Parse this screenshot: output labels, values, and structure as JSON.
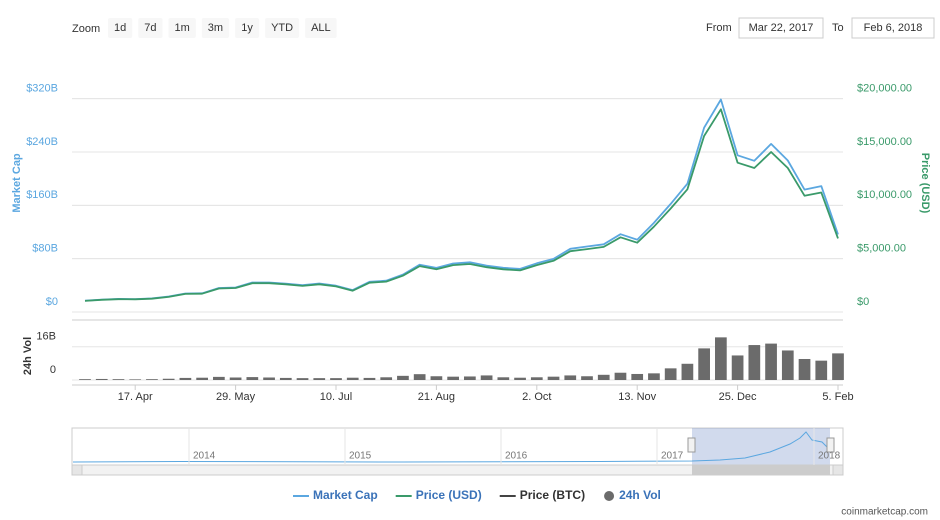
{
  "toolbar": {
    "zoom_label": "Zoom",
    "buttons": [
      "1d",
      "7d",
      "1m",
      "3m",
      "1y",
      "YTD",
      "ALL"
    ],
    "from_label": "From",
    "from": "Mar 22, 2017",
    "to_label": "To",
    "to": "Feb 6, 2018"
  },
  "chart_data": {
    "type": "line",
    "y_label": "Market Cap",
    "y2_label": "Price (USD)",
    "vol_label": "24h Vol",
    "categories": [
      null,
      null,
      null,
      "17. Apr",
      null,
      null,
      null,
      null,
      null,
      "29. May",
      null,
      null,
      null,
      null,
      null,
      "10. Jul",
      null,
      null,
      null,
      null,
      null,
      "21. Aug",
      null,
      null,
      null,
      null,
      null,
      "2. Oct",
      null,
      null,
      null,
      null,
      null,
      "13. Nov",
      null,
      null,
      null,
      null,
      null,
      "25. Dec",
      null,
      null,
      null,
      null,
      null,
      "5. Feb"
    ],
    "ylim": [
      0,
      360
    ],
    "yticks": [
      {
        "value": 0,
        "label": "$0"
      },
      {
        "value": 80,
        "label": "$80B"
      },
      {
        "value": 160,
        "label": "$160B"
      },
      {
        "value": 240,
        "label": "$240B"
      },
      {
        "value": 320,
        "label": "$320B"
      }
    ],
    "y2lim": [
      0,
      22500
    ],
    "y2ticks": [
      {
        "value": 0,
        "label": "$0"
      },
      {
        "value": 5000,
        "label": "$5,000.00"
      },
      {
        "value": 10000,
        "label": "$10,000.00"
      },
      {
        "value": 15000,
        "label": "$15,000.00"
      },
      {
        "value": 20000,
        "label": "$20,000.00"
      }
    ],
    "vol_ylim": [
      0,
      25
    ],
    "vol_yticks": [
      0,
      {
        "value": 16,
        "label": "16B"
      }
    ],
    "grid": true,
    "series": [
      {
        "name": "Market Cap",
        "color": "#5ba7e0",
        "axis": "y",
        "values": [
          17,
          18.6,
          19.6,
          19.4,
          20.4,
          23.2,
          27.8,
          28.1,
          36,
          36.8,
          44.2,
          44.2,
          42.6,
          40.2,
          42.7,
          39.4,
          32.9,
          45.3,
          47,
          56.1,
          71,
          66.1,
          72.8,
          74.5,
          69.6,
          66.3,
          64.7,
          73,
          79.7,
          94.8,
          98.2,
          101.6,
          116.7,
          108.5,
          133.6,
          162.2,
          192.5,
          276.5,
          318.7,
          235,
          226.8,
          252.2,
          227.2,
          183.6,
          188.8,
          116.4
        ]
      },
      {
        "name": "Price (USD)",
        "color": "#3a9a6a",
        "axis": "y2",
        "values": [
          1040,
          1140,
          1200,
          1190,
          1250,
          1420,
          1700,
          1720,
          2200,
          2250,
          2700,
          2700,
          2600,
          2450,
          2600,
          2400,
          2000,
          2750,
          2850,
          3400,
          4300,
          4000,
          4400,
          4500,
          4200,
          4000,
          3900,
          4400,
          4800,
          5700,
          5900,
          6100,
          7000,
          6500,
          8000,
          9700,
          11500,
          16500,
          19000,
          14000,
          13500,
          15000,
          13500,
          10900,
          11200,
          6900
        ]
      },
      {
        "name": "Price (BTC)",
        "color": "#444444",
        "visible": false
      },
      {
        "name": "24h Vol",
        "color": "#6b6b6b",
        "axis": "vol",
        "type": "bar",
        "values": [
          0.4,
          0.5,
          0.4,
          0.3,
          0.4,
          0.6,
          1.0,
          1.1,
          1.5,
          1.2,
          1.4,
          1.2,
          1.0,
          0.9,
          0.9,
          0.9,
          1.1,
          1.0,
          1.3,
          2.0,
          2.8,
          1.8,
          1.6,
          1.7,
          2.2,
          1.3,
          1.1,
          1.3,
          1.6,
          2.2,
          1.8,
          2.5,
          3.5,
          2.9,
          3.2,
          5.6,
          7.8,
          15.2,
          20.5,
          11.8,
          16.8,
          17.5,
          14.2,
          10.1,
          9.3,
          12.8
        ]
      }
    ]
  },
  "navigator": {
    "years": [
      "2014",
      "2015",
      "2016",
      "2017",
      "2018"
    ]
  },
  "credit": "coinmarketcap.com"
}
